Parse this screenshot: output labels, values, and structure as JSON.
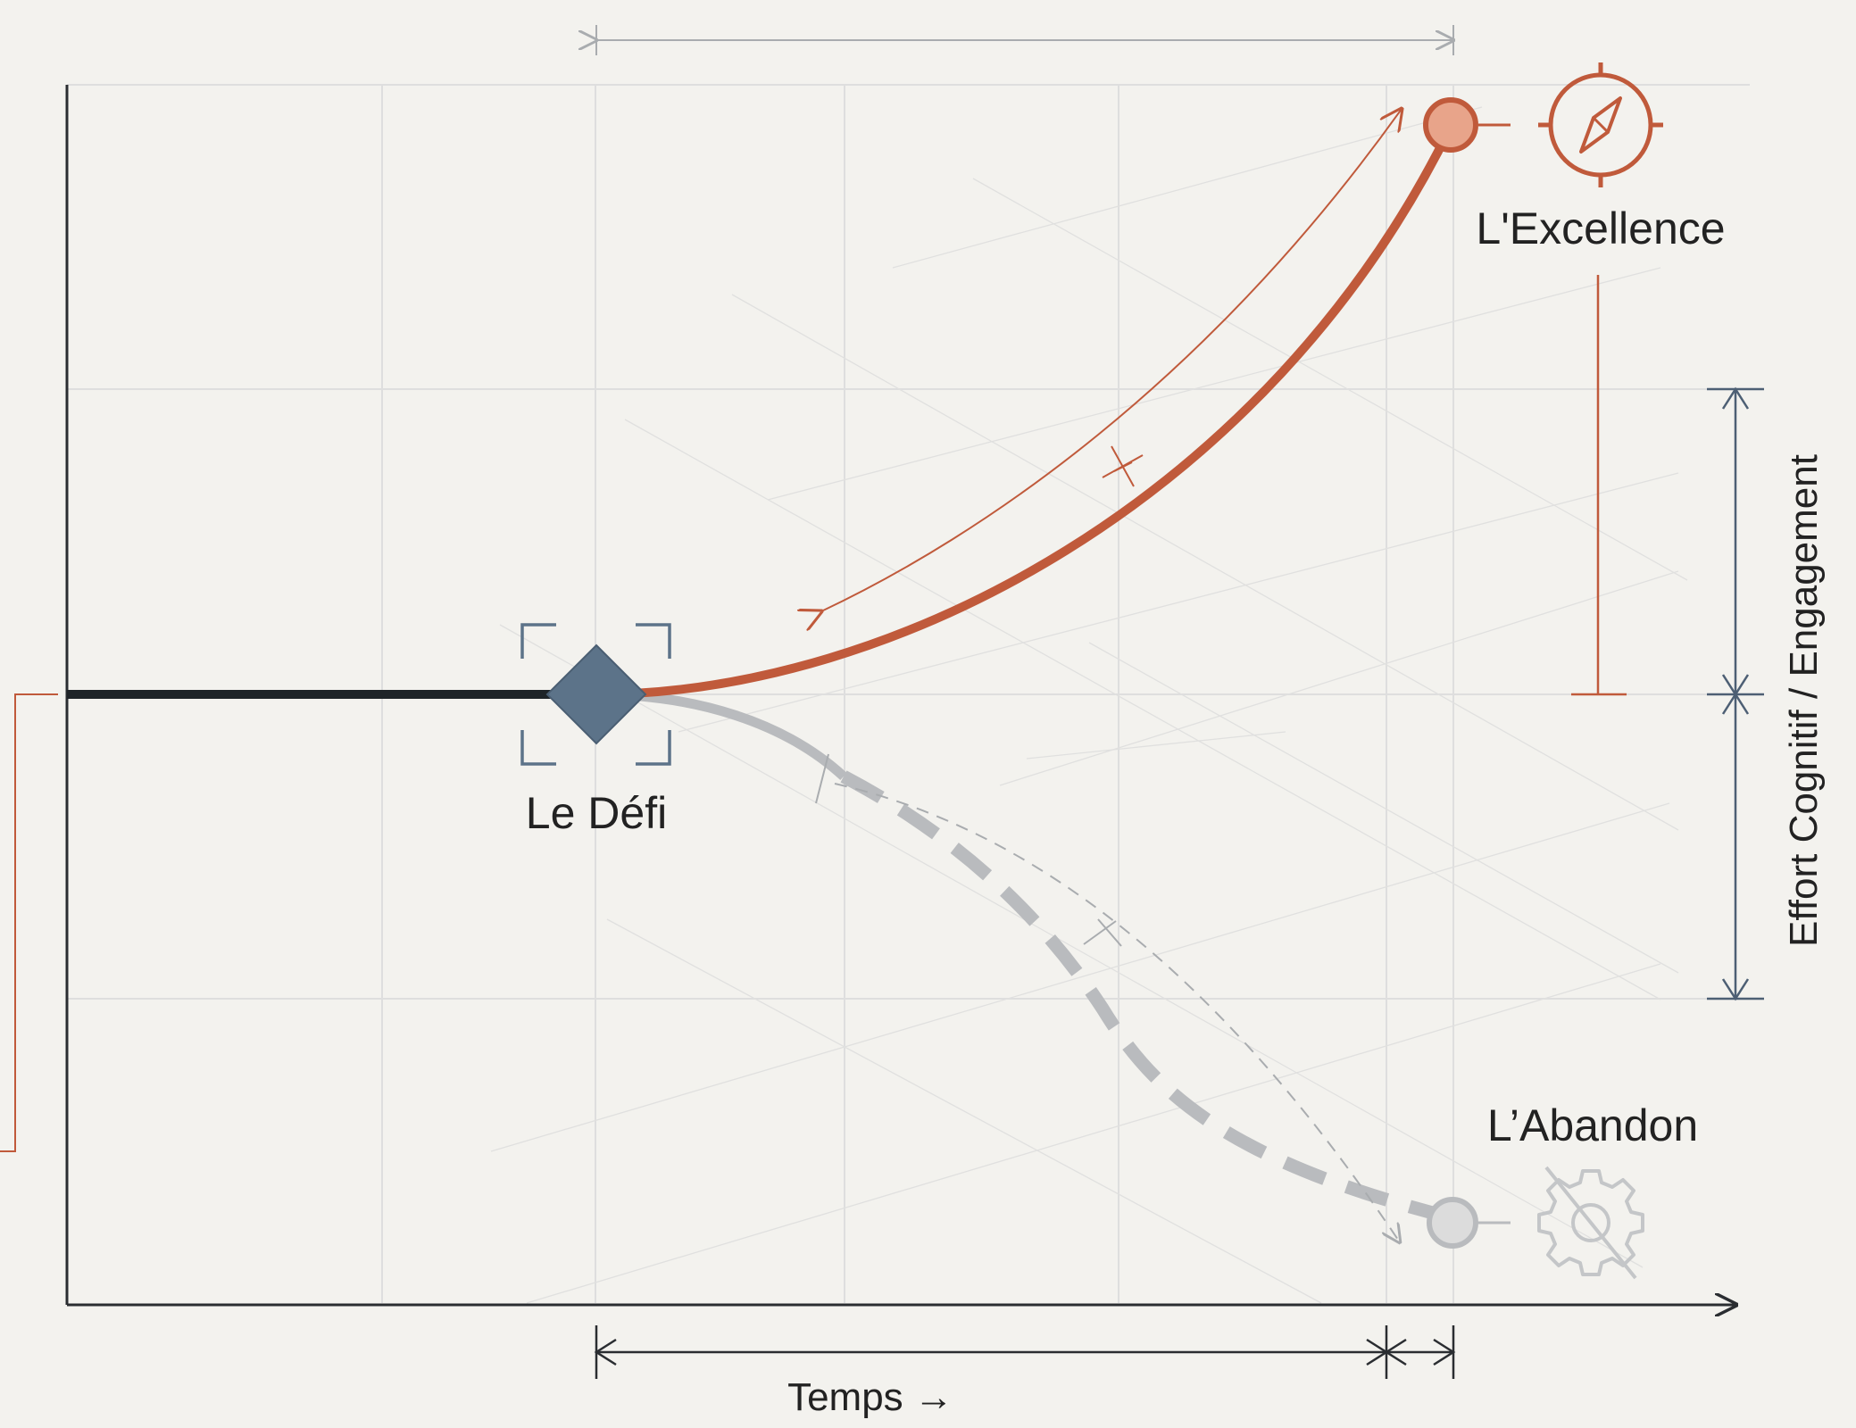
{
  "labels": {
    "start_node": "Le Défi",
    "upper_outcome": "L'Excellence",
    "lower_outcome": "L’Abandon",
    "x_axis": "Temps →",
    "y_axis": "Effort Cognitif / Engagement"
  },
  "icons": {
    "start_node": "diamond-node",
    "upper_outcome": "compass-icon",
    "lower_outcome": "gear-crossed-icon"
  },
  "colors": {
    "background": "#f3f2ee",
    "grid": "#dedede",
    "axis": "#2a2d31",
    "baseline": "#1f2428",
    "excellence": "#c05a3b",
    "excellence_node_fill": "#e8a48a",
    "abandon": "#b9bbbe",
    "node": "#5c7389",
    "dimension": "#4d5f74"
  }
}
